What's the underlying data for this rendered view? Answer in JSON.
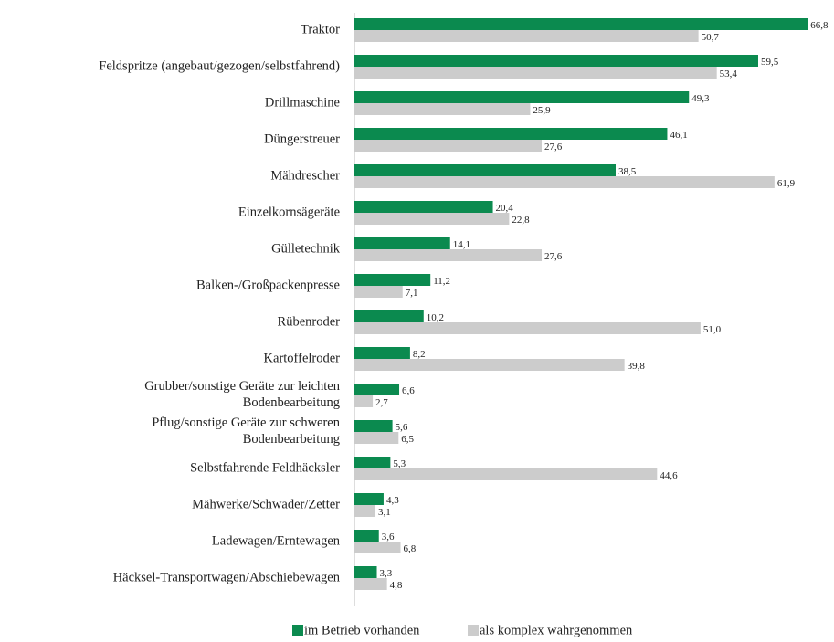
{
  "chart_data": {
    "type": "bar",
    "orientation": "horizontal",
    "categories": [
      "Traktor",
      "Feldspritze (angebaut/gezogen/selbstfahrend)",
      "Drillmaschine",
      "Düngerstreuer",
      "Mähdrescher",
      "Einzelkornsägeräte",
      "Gülletechnik",
      "Balken-/Großpackenpresse",
      "Rübenroder",
      "Kartoffelroder",
      "Grubber/sonstige Geräte zur leichten\nBodenbearbeitung",
      "Pflug/sonstige Geräte zur schweren\nBodenbearbeitung",
      "Selbstfahrende Feldhäcksler",
      "Mähwerke/Schwader/Zetter",
      "Ladewagen/Erntewagen",
      "Häcksel-Transportwagen/Abschiebewagen"
    ],
    "series": [
      {
        "name": "im Betrieb vorhanden",
        "color": "#0b8a4f",
        "values": [
          66.8,
          59.5,
          49.3,
          46.1,
          38.5,
          20.4,
          14.1,
          11.2,
          10.2,
          8.2,
          6.6,
          5.6,
          5.3,
          4.3,
          3.6,
          3.3
        ],
        "value_labels": [
          "66,8",
          "59,5",
          "49,3",
          "46,1",
          "38,5",
          "20,4",
          "14,1",
          "11,2",
          "10,2",
          "8,2",
          "6,6",
          "5,6",
          "5,3",
          "4,3",
          "3,6",
          "3,3"
        ]
      },
      {
        "name": "als komplex wahrgenommen",
        "color": "#cccccc",
        "values": [
          50.7,
          53.4,
          25.9,
          27.6,
          61.9,
          22.8,
          27.6,
          7.1,
          51.0,
          39.8,
          2.7,
          6.5,
          44.6,
          3.1,
          6.8,
          4.8
        ],
        "value_labels": [
          "50,7",
          "53,4",
          "25,9",
          "27,6",
          "61,9",
          "22,8",
          "27,6",
          "7,1",
          "51,0",
          "39,8",
          "2,7",
          "6,5",
          "44,6",
          "3,1",
          "6,8",
          "4,8"
        ]
      }
    ],
    "xlim": [
      0,
      70
    ],
    "grid": false,
    "legend": "bottom"
  }
}
